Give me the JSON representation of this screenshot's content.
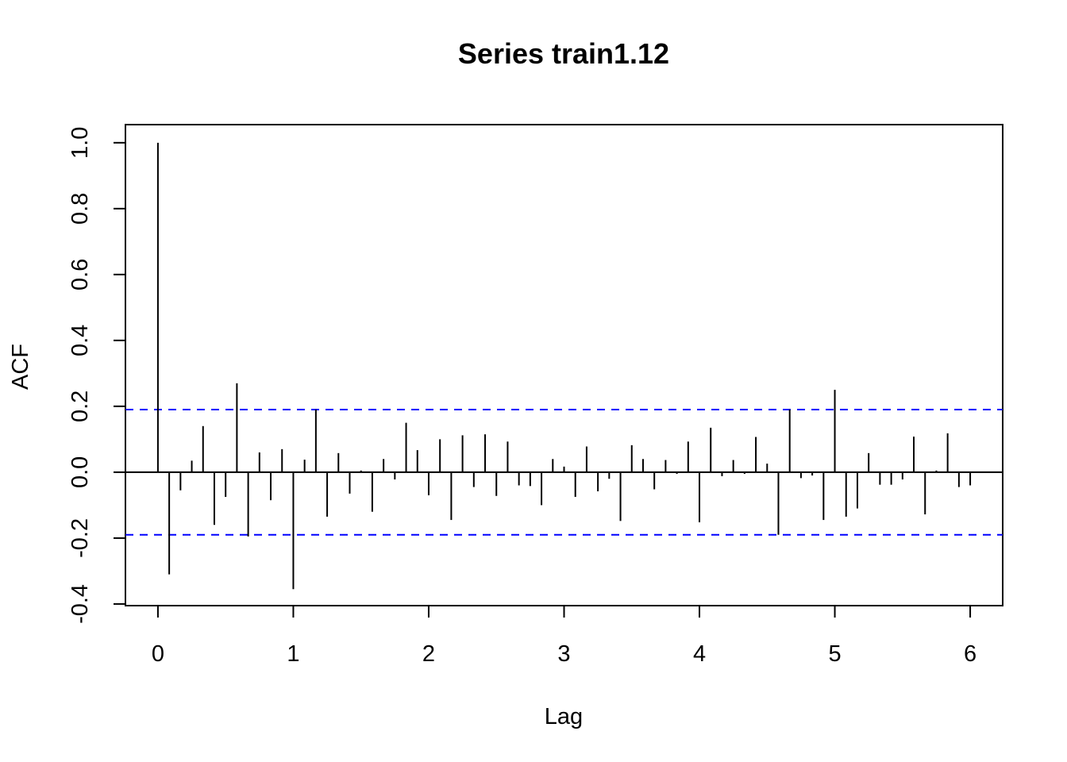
{
  "chart_data": {
    "type": "bar",
    "title": "Series  train1.12",
    "xlabel": "Lag",
    "ylabel": "ACF",
    "xlim": [
      -0.24,
      6.24
    ],
    "ylim": [
      -0.405,
      1.055
    ],
    "x_ticks": [
      0,
      1,
      2,
      3,
      4,
      5,
      6
    ],
    "x_tick_labels": [
      "0",
      "1",
      "2",
      "3",
      "4",
      "5",
      "6"
    ],
    "y_ticks": [
      -0.4,
      -0.2,
      0.0,
      0.2,
      0.4,
      0.6,
      0.8,
      1.0
    ],
    "y_tick_labels": [
      "-0.4",
      "-0.2",
      "0.0",
      "0.2",
      "0.4",
      "0.6",
      "0.8",
      "1.0"
    ],
    "confidence_band": 0.19,
    "band_color": "#0000ff",
    "bar_color": "#000000",
    "grid": false,
    "series": [
      {
        "x": [
          0,
          0.0833,
          0.1667,
          0.25,
          0.3333,
          0.4167,
          0.5,
          0.5833,
          0.6667,
          0.75,
          0.8333,
          0.9167,
          1,
          1.0833,
          1.1667,
          1.25,
          1.3333,
          1.4167,
          1.5,
          1.5833,
          1.6667,
          1.75,
          1.8333,
          1.9167,
          2,
          2.0833,
          2.1667,
          2.25,
          2.3333,
          2.4167,
          2.5,
          2.5833,
          2.6667,
          2.75,
          2.8333,
          2.9167,
          3,
          3.0833,
          3.1667,
          3.25,
          3.3333,
          3.4167,
          3.5,
          3.5833,
          3.6667,
          3.75,
          3.8333,
          3.9167,
          4,
          4.0833,
          4.1667,
          4.25,
          4.3333,
          4.4167,
          4.5,
          4.5833,
          4.6667,
          4.75,
          4.8333,
          4.9167,
          5,
          5.0833,
          5.1667,
          5.25,
          5.3333,
          5.4167,
          5.5,
          5.5833,
          5.6667,
          5.75,
          5.8333,
          5.9167,
          6
        ],
        "values": [
          1.0,
          -0.31,
          -0.055,
          0.035,
          0.14,
          -0.16,
          -0.075,
          0.27,
          -0.195,
          0.06,
          -0.085,
          0.07,
          -0.355,
          0.038,
          0.19,
          -0.135,
          0.058,
          -0.065,
          0.005,
          -0.12,
          0.04,
          -0.022,
          0.15,
          0.067,
          -0.07,
          0.1,
          -0.145,
          0.112,
          -0.045,
          0.115,
          -0.072,
          0.093,
          -0.04,
          -0.042,
          -0.1,
          0.04,
          0.017,
          -0.075,
          0.078,
          -0.058,
          -0.02,
          -0.148,
          0.082,
          0.04,
          -0.052,
          0.037,
          -0.005,
          0.093,
          -0.152,
          0.135,
          -0.012,
          0.037,
          -0.005,
          0.107,
          0.026,
          -0.19,
          0.19,
          -0.018,
          -0.01,
          -0.145,
          0.25,
          -0.135,
          -0.11,
          0.058,
          -0.038,
          -0.038,
          -0.022,
          0.108,
          -0.128,
          0.005,
          0.118,
          -0.045,
          -0.04
        ]
      }
    ]
  }
}
